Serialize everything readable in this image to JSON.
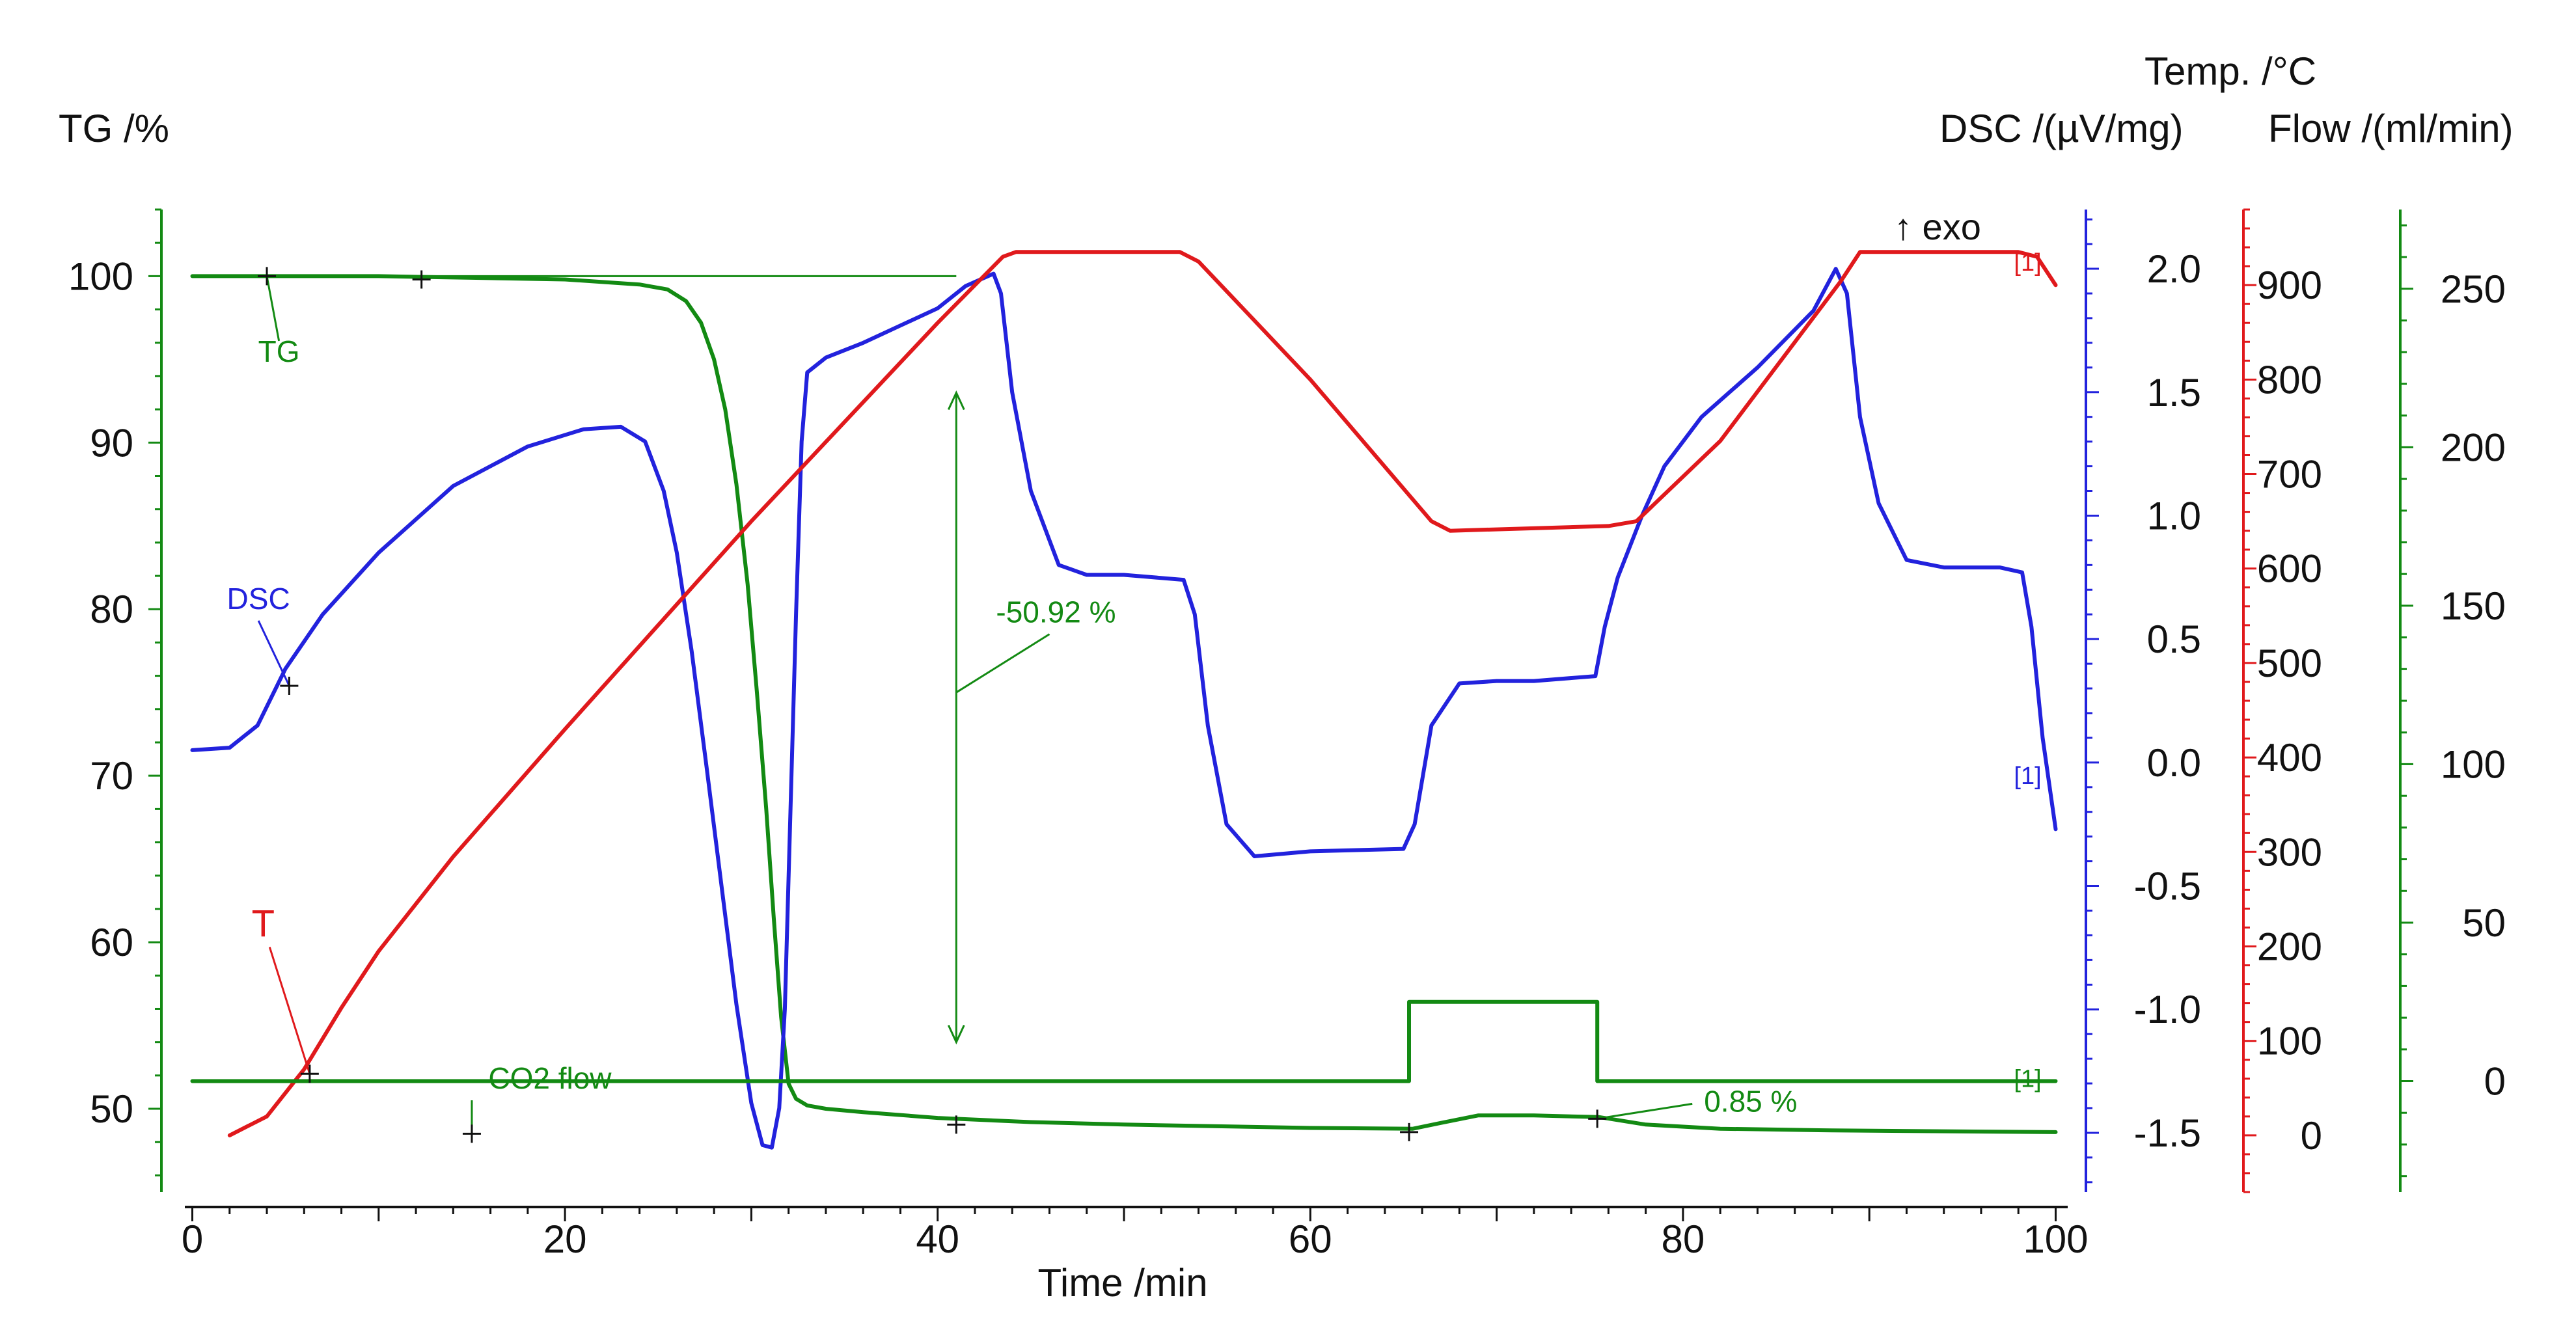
{
  "chart_data": {
    "type": "line",
    "x_axis": {
      "label": "Time /min",
      "range": [
        0,
        100
      ],
      "ticks": [
        0,
        20,
        40,
        60,
        80,
        100
      ]
    },
    "y_axes": {
      "tg": {
        "label": "TG /%",
        "range": [
          45,
          104
        ],
        "ticks": [
          50,
          60,
          70,
          80,
          90,
          100
        ],
        "color": "#138a13"
      },
      "dsc": {
        "label": "DSC /(µV/mg)",
        "range": [
          -1.74,
          2.24
        ],
        "ticks": [
          "2.0",
          "1.5",
          "1.0",
          "0.5",
          "0.0",
          "-0.5",
          "-1.0",
          "-1.5"
        ],
        "color": "#2222dd"
      },
      "temp": {
        "label": "Temp. /°C",
        "range": [
          -60,
          980
        ],
        "ticks": [
          0,
          100,
          200,
          300,
          400,
          500,
          600,
          700,
          800,
          900
        ],
        "color": "#e0191c"
      },
      "flow": {
        "label": "Flow /(ml/min)",
        "range": [
          -35,
          275
        ],
        "ticks": [
          0,
          50,
          100,
          150,
          200,
          250
        ],
        "color": "#138a13"
      }
    },
    "exo_label": "↑ exo",
    "series": [
      {
        "name": "TG",
        "label": "TG",
        "axis": "tg",
        "color": "#138a13",
        "x": [
          0,
          5,
          10,
          15,
          20,
          24,
          25.5,
          26.5,
          27.3,
          28,
          28.6,
          29.2,
          29.8,
          30.3,
          30.8,
          31.2,
          31.6,
          32,
          32.4,
          33,
          34,
          36,
          40,
          45,
          50,
          60,
          65.5,
          67,
          69,
          72,
          75.5,
          78,
          82,
          88,
          100
        ],
        "y": [
          100,
          100,
          100,
          99.9,
          99.8,
          99.5,
          99.2,
          98.5,
          97.2,
          95,
          92,
          87.5,
          81.5,
          75,
          68,
          61.5,
          55.5,
          51.5,
          50.6,
          50.2,
          50,
          49.8,
          49.45,
          49.2,
          49.05,
          48.85,
          48.8,
          49.15,
          49.6,
          49.6,
          49.5,
          49.05,
          48.8,
          48.7,
          48.6
        ]
      },
      {
        "name": "DSC",
        "label": "DSC",
        "axis": "dsc",
        "color": "#2222dd",
        "x": [
          0,
          2,
          3.5,
          5,
          7,
          10,
          14,
          18,
          21,
          23,
          24.3,
          25.3,
          26,
          26.8,
          27.6,
          28.4,
          29.2,
          30,
          30.6,
          31.1,
          31.5,
          31.8,
          32.1,
          32.4,
          32.7,
          33,
          34,
          36,
          38,
          40,
          41.5,
          43,
          43.4,
          44,
          45,
          46.5,
          48,
          50,
          53.2,
          53.8,
          54.5,
          55.5,
          57,
          60,
          65,
          65.6,
          66.5,
          68,
          70,
          72,
          75.3,
          75.8,
          76.5,
          77.8,
          79,
          81,
          84,
          87,
          88.2,
          88.8,
          89.5,
          90.5,
          92,
          94,
          97,
          98.2,
          98.7,
          99.3,
          100
        ],
        "y": [
          0.05,
          0.06,
          0.15,
          0.38,
          0.6,
          0.85,
          1.12,
          1.28,
          1.35,
          1.36,
          1.3,
          1.1,
          0.85,
          0.45,
          -0.02,
          -0.5,
          -0.98,
          -1.38,
          -1.55,
          -1.56,
          -1.4,
          -1.0,
          -0.2,
          0.6,
          1.3,
          1.58,
          1.64,
          1.7,
          1.77,
          1.84,
          1.93,
          1.98,
          1.9,
          1.5,
          1.1,
          0.8,
          0.76,
          0.76,
          0.74,
          0.6,
          0.15,
          -0.25,
          -0.38,
          -0.36,
          -0.35,
          -0.25,
          0.15,
          0.32,
          0.33,
          0.33,
          0.35,
          0.55,
          0.75,
          1.0,
          1.2,
          1.4,
          1.6,
          1.83,
          2.0,
          1.9,
          1.4,
          1.05,
          0.82,
          0.79,
          0.79,
          0.77,
          0.55,
          0.1,
          -0.27
        ]
      },
      {
        "name": "Temp",
        "label": "T",
        "axis": "temp",
        "color": "#e0191c",
        "x": [
          2,
          4,
          6,
          8,
          10,
          14,
          20,
          25,
          30,
          35,
          40,
          43.5,
          44.2,
          46,
          53,
          54,
          60,
          66.5,
          67.5,
          76,
          77.5,
          82,
          88.5,
          89.5,
          91,
          98,
          99,
          100
        ],
        "y": [
          0,
          20,
          70,
          135,
          195,
          295,
          430,
          540,
          650,
          755,
          860,
          930,
          935,
          935,
          935,
          925,
          800,
          650,
          640,
          645,
          650,
          735,
          905,
          935,
          935,
          935,
          930,
          900
        ]
      },
      {
        "name": "CO2 flow",
        "label": "CO2 flow",
        "axis": "flow",
        "color": "#138a13",
        "x": [
          0,
          65.3,
          65.3,
          75.4,
          75.4,
          100
        ],
        "y": [
          0,
          0,
          25,
          25,
          0,
          0
        ]
      }
    ],
    "annotations": [
      {
        "type": "mass_change",
        "text": "-50.92 %",
        "x": 41,
        "from_tg": 93,
        "to_tg": 54,
        "leader_from_x": 41,
        "leader_from_tg": 75,
        "leader_to_x": 46,
        "leader_to_tg": 78.5
      },
      {
        "type": "mass_change",
        "text": "0.85 %",
        "label_x": 77.4,
        "label_tg": 49.5,
        "leader_from_x": 75.4,
        "leader_from_tg": 49.4,
        "leader_to_x": 80.5,
        "leader_to_tg": 50.3
      },
      {
        "type": "baseline",
        "x_from": 0,
        "x_to": 41,
        "tg": 100
      },
      {
        "type": "axis_marker",
        "text": "[1]",
        "axis": "temp",
        "x": 98.5,
        "y": 925,
        "color": "#e0191c"
      },
      {
        "type": "axis_marker",
        "text": "[1]",
        "axis": "dsc",
        "x": 98.5,
        "y": -0.05,
        "color": "#2222dd"
      },
      {
        "type": "axis_marker",
        "text": "[1]",
        "axis": "flow",
        "x": 98.5,
        "y": 1,
        "color": "#138a13"
      }
    ],
    "series_labels": [
      {
        "series": "TG",
        "label_x": 4.3,
        "label_tg": 96.5,
        "point_x": 4,
        "point_tg": 100
      },
      {
        "series": "DSC",
        "label_x": 3.2,
        "label_tg": 79.7,
        "point_x": 5.2,
        "point_tg": 75.4
      },
      {
        "series": "Temp",
        "label_x": 3.8,
        "label_tg": 60.1,
        "point_x": 6.3,
        "point_tg": 52.1
      },
      {
        "series": "CO2 flow",
        "label_x": 15,
        "label_tg": 50.9,
        "point_x": 15,
        "point_tg": 48.5
      }
    ],
    "cross_markers": [
      {
        "x": 4,
        "tg": 100
      },
      {
        "x": 12.3,
        "tg": 99.8
      },
      {
        "x": 5.2,
        "tg": 75.4
      },
      {
        "x": 6.3,
        "tg": 52.1
      },
      {
        "x": 15,
        "tg": 48.5
      },
      {
        "x": 41,
        "tg": 49.05
      },
      {
        "x": 65.3,
        "tg": 48.6
      },
      {
        "x": 75.4,
        "tg": 49.4
      }
    ]
  }
}
